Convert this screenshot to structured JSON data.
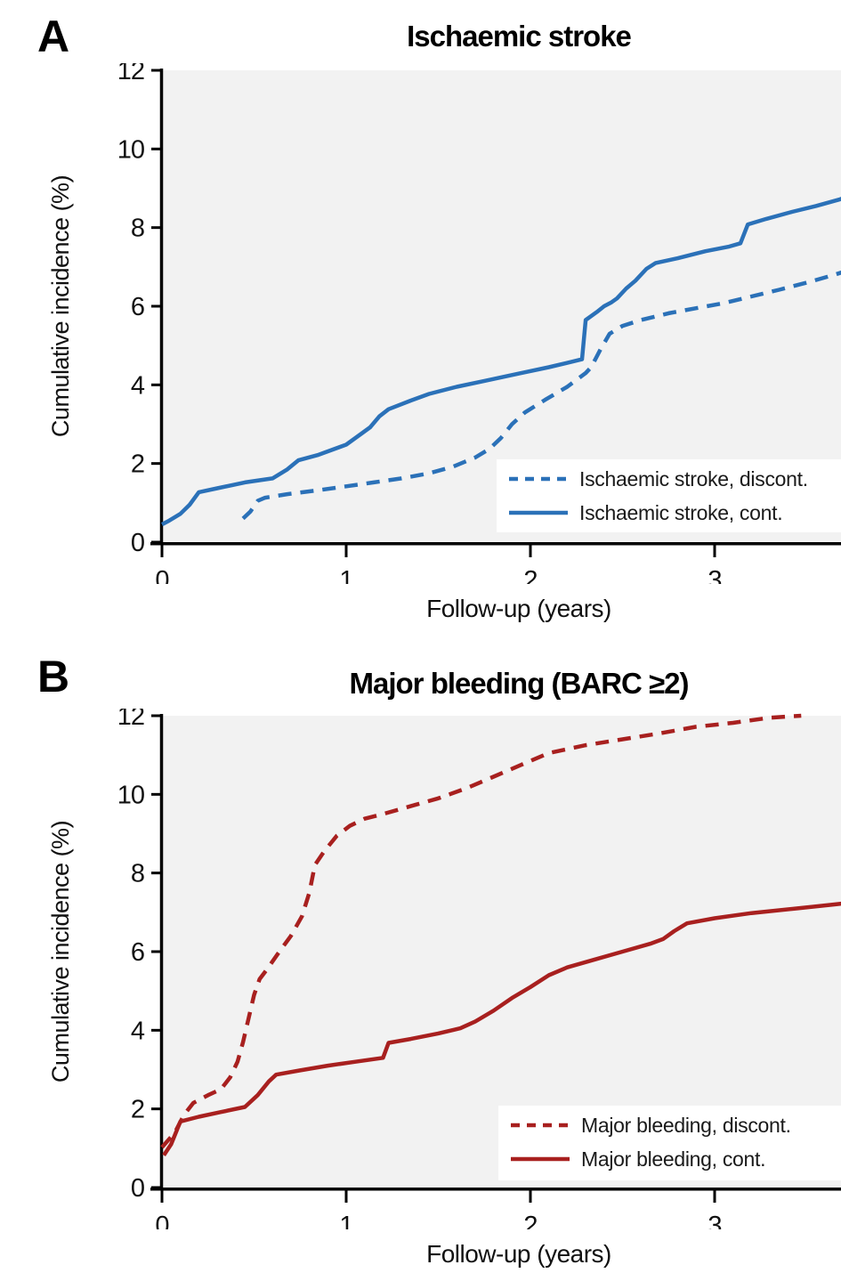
{
  "colors": {
    "blue": "#2b71b8",
    "red": "#a8201f",
    "plot_bg": "#f2f2f2",
    "axis": "#000000",
    "text": "#111111",
    "legend_bg": "#ffffff"
  },
  "chart_data": [
    {
      "type": "line",
      "panel_label": "A",
      "title": "Ischaemic stroke",
      "xlabel": "Follow-up (years)",
      "ylabel": "Cumulative incidence (%)",
      "xlim": [
        0,
        3.9
      ],
      "ylim": [
        0,
        12
      ],
      "xticks": [
        0,
        1,
        2,
        3
      ],
      "yticks": [
        0,
        2,
        4,
        6,
        8,
        10,
        12
      ],
      "grid": false,
      "legend_position": "bottom-right",
      "series": [
        {
          "name": "Ischaemic stroke, discont.",
          "style": "dashed",
          "color": "#2b71b8",
          "points": [
            [
              0.44,
              0.6
            ],
            [
              0.48,
              0.78
            ],
            [
              0.52,
              1.05
            ],
            [
              0.56,
              1.13
            ],
            [
              0.68,
              1.22
            ],
            [
              0.85,
              1.32
            ],
            [
              1.0,
              1.42
            ],
            [
              1.15,
              1.52
            ],
            [
              1.3,
              1.62
            ],
            [
              1.45,
              1.75
            ],
            [
              1.58,
              1.92
            ],
            [
              1.7,
              2.15
            ],
            [
              1.78,
              2.38
            ],
            [
              1.84,
              2.65
            ],
            [
              1.9,
              3.0
            ],
            [
              1.97,
              3.3
            ],
            [
              2.08,
              3.62
            ],
            [
              2.2,
              3.95
            ],
            [
              2.3,
              4.3
            ],
            [
              2.33,
              4.45
            ],
            [
              2.38,
              4.9
            ],
            [
              2.43,
              5.3
            ],
            [
              2.5,
              5.5
            ],
            [
              2.6,
              5.65
            ],
            [
              2.75,
              5.82
            ],
            [
              2.9,
              5.95
            ],
            [
              3.05,
              6.08
            ],
            [
              3.2,
              6.25
            ],
            [
              3.35,
              6.42
            ],
            [
              3.5,
              6.6
            ],
            [
              3.65,
              6.8
            ],
            [
              3.75,
              6.95
            ],
            [
              3.83,
              7.05
            ]
          ]
        },
        {
          "name": "Ischaemic stroke, cont.",
          "style": "solid",
          "color": "#2b71b8",
          "points": [
            [
              0,
              0.45
            ],
            [
              0.04,
              0.55
            ],
            [
              0.1,
              0.72
            ],
            [
              0.15,
              0.95
            ],
            [
              0.2,
              1.27
            ],
            [
              0.3,
              1.37
            ],
            [
              0.45,
              1.52
            ],
            [
              0.6,
              1.62
            ],
            [
              0.68,
              1.85
            ],
            [
              0.74,
              2.08
            ],
            [
              0.85,
              2.22
            ],
            [
              1.0,
              2.48
            ],
            [
              1.08,
              2.75
            ],
            [
              1.13,
              2.92
            ],
            [
              1.18,
              3.2
            ],
            [
              1.23,
              3.38
            ],
            [
              1.35,
              3.6
            ],
            [
              1.45,
              3.77
            ],
            [
              1.6,
              3.95
            ],
            [
              1.75,
              4.1
            ],
            [
              1.95,
              4.3
            ],
            [
              2.1,
              4.45
            ],
            [
              2.28,
              4.65
            ],
            [
              2.3,
              5.65
            ],
            [
              2.36,
              5.85
            ],
            [
              2.4,
              6.0
            ],
            [
              2.44,
              6.1
            ],
            [
              2.47,
              6.2
            ],
            [
              2.52,
              6.45
            ],
            [
              2.57,
              6.65
            ],
            [
              2.63,
              6.95
            ],
            [
              2.68,
              7.1
            ],
            [
              2.8,
              7.22
            ],
            [
              2.95,
              7.4
            ],
            [
              3.08,
              7.52
            ],
            [
              3.14,
              7.6
            ],
            [
              3.18,
              8.08
            ],
            [
              3.28,
              8.22
            ],
            [
              3.42,
              8.4
            ],
            [
              3.55,
              8.55
            ],
            [
              3.68,
              8.72
            ],
            [
              3.78,
              8.88
            ],
            [
              3.88,
              9.1
            ]
          ]
        }
      ]
    },
    {
      "type": "line",
      "panel_label": "B",
      "title": "Major bleeding (BARC ≥2)",
      "xlabel": "Follow-up (years)",
      "ylabel": "Cumulative incidence (%)",
      "xlim": [
        0,
        3.9
      ],
      "ylim": [
        0,
        12
      ],
      "xticks": [
        0,
        1,
        2,
        3
      ],
      "yticks": [
        0,
        2,
        4,
        6,
        8,
        10,
        12
      ],
      "grid": false,
      "legend_position": "bottom-right",
      "series": [
        {
          "name": "Major bleeding, discont.",
          "style": "dashed",
          "color": "#a8201f",
          "points": [
            [
              0.0,
              1.02
            ],
            [
              0.07,
              1.4
            ],
            [
              0.12,
              1.85
            ],
            [
              0.17,
              2.15
            ],
            [
              0.25,
              2.35
            ],
            [
              0.32,
              2.5
            ],
            [
              0.37,
              2.8
            ],
            [
              0.41,
              3.2
            ],
            [
              0.44,
              3.7
            ],
            [
              0.47,
              4.3
            ],
            [
              0.5,
              4.9
            ],
            [
              0.53,
              5.3
            ],
            [
              0.57,
              5.55
            ],
            [
              0.63,
              5.95
            ],
            [
              0.7,
              6.4
            ],
            [
              0.76,
              6.9
            ],
            [
              0.8,
              7.5
            ],
            [
              0.83,
              8.2
            ],
            [
              0.88,
              8.55
            ],
            [
              0.95,
              8.95
            ],
            [
              1.02,
              9.2
            ],
            [
              1.1,
              9.38
            ],
            [
              1.2,
              9.5
            ],
            [
              1.35,
              9.7
            ],
            [
              1.5,
              9.9
            ],
            [
              1.65,
              10.15
            ],
            [
              1.8,
              10.45
            ],
            [
              1.95,
              10.75
            ],
            [
              2.1,
              11.05
            ],
            [
              2.3,
              11.25
            ],
            [
              2.5,
              11.4
            ],
            [
              2.7,
              11.55
            ],
            [
              2.9,
              11.72
            ],
            [
              3.1,
              11.82
            ],
            [
              3.3,
              11.95
            ],
            [
              3.47,
              12.0
            ]
          ]
        },
        {
          "name": "Major bleeding, cont.",
          "style": "solid",
          "color": "#a8201f",
          "points": [
            [
              0.01,
              0.82
            ],
            [
              0.05,
              1.1
            ],
            [
              0.1,
              1.68
            ],
            [
              0.2,
              1.8
            ],
            [
              0.32,
              1.92
            ],
            [
              0.45,
              2.05
            ],
            [
              0.52,
              2.35
            ],
            [
              0.58,
              2.7
            ],
            [
              0.62,
              2.87
            ],
            [
              0.75,
              2.98
            ],
            [
              0.9,
              3.1
            ],
            [
              1.05,
              3.2
            ],
            [
              1.2,
              3.3
            ],
            [
              1.23,
              3.68
            ],
            [
              1.35,
              3.78
            ],
            [
              1.5,
              3.92
            ],
            [
              1.62,
              4.05
            ],
            [
              1.7,
              4.22
            ],
            [
              1.8,
              4.5
            ],
            [
              1.9,
              4.82
            ],
            [
              2.0,
              5.1
            ],
            [
              2.1,
              5.4
            ],
            [
              2.2,
              5.6
            ],
            [
              2.35,
              5.8
            ],
            [
              2.5,
              6.0
            ],
            [
              2.65,
              6.2
            ],
            [
              2.72,
              6.32
            ],
            [
              2.78,
              6.52
            ],
            [
              2.85,
              6.72
            ],
            [
              3.0,
              6.85
            ],
            [
              3.2,
              6.98
            ],
            [
              3.45,
              7.1
            ],
            [
              3.65,
              7.2
            ],
            [
              3.88,
              7.32
            ]
          ]
        }
      ]
    }
  ]
}
